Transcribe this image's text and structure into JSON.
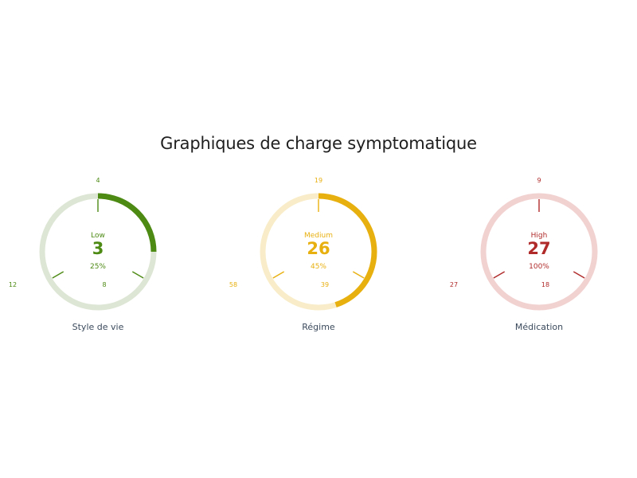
{
  "title": "Graphiques de charge symptomatique",
  "chart_data": [
    {
      "type": "gauge",
      "name": "Style de vie",
      "level": "Low",
      "value": "3",
      "percent_label": "25%",
      "fill_fraction": 0.25,
      "ticks": {
        "top": "4",
        "right": "8",
        "left": "12"
      },
      "colors": {
        "accent": "#4d8a14",
        "track": "#dde6d4"
      }
    },
    {
      "type": "gauge",
      "name": "Régime",
      "level": "Medium",
      "value": "26",
      "percent_label": "45%",
      "fill_fraction": 0.45,
      "ticks": {
        "top": "19",
        "right": "39",
        "left": "58"
      },
      "colors": {
        "accent": "#e8b00f",
        "track": "#f8edc8"
      }
    },
    {
      "type": "gauge",
      "name": "Médication",
      "level": "High",
      "value": "27",
      "percent_label": "100%",
      "fill_fraction": 1.0,
      "ticks": {
        "top": "9",
        "right": "18",
        "left": "27"
      },
      "colors": {
        "accent": "#b02a2a",
        "track": "#f2d1d1"
      }
    }
  ]
}
